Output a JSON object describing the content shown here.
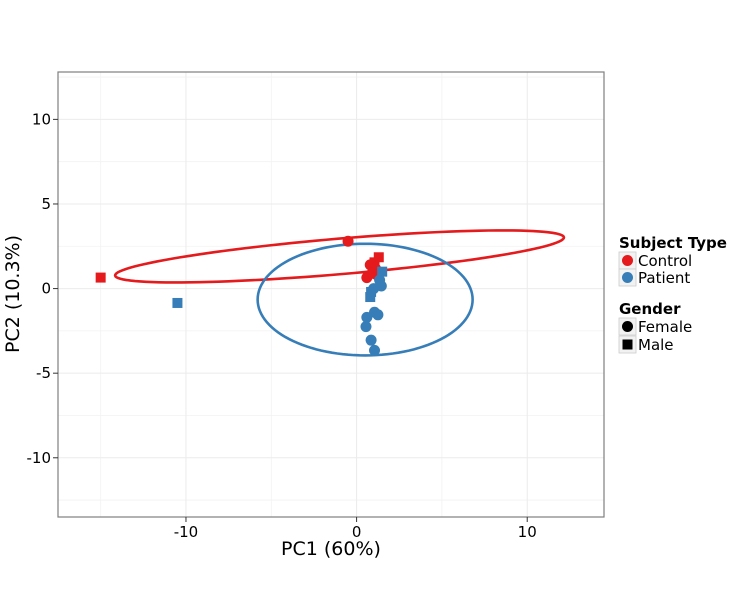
{
  "chart_data": {
    "type": "scatter",
    "xlabel": "PC1 (60%)",
    "ylabel": "PC2 (10.3%)",
    "xlim": [
      -17.5,
      14.5
    ],
    "ylim": [
      -13.5,
      12.8
    ],
    "x_ticks": [
      -10,
      0,
      10
    ],
    "y_ticks": [
      10,
      5,
      0,
      -5,
      -10
    ],
    "x_tick_labels": [
      "-10",
      "0",
      "10"
    ],
    "y_tick_labels": [
      "10",
      "5",
      "0",
      "-5",
      "-10"
    ],
    "grid": true,
    "legend_position": "right",
    "legend": {
      "color_title": "Subject Type",
      "color_entries": [
        {
          "label": "Control",
          "color": "#e41a1c"
        },
        {
          "label": "Patient",
          "color": "#377eb8"
        }
      ],
      "shape_title": "Gender",
      "shape_entries": [
        {
          "label": "Female",
          "shape": "circle"
        },
        {
          "label": "Male",
          "shape": "square"
        }
      ]
    },
    "colors": {
      "Control": "#e41a1c",
      "Patient": "#377eb8"
    },
    "ellipses": [
      {
        "group": "Control",
        "cx": -1.0,
        "cy": 1.9,
        "rx": 13.2,
        "ry": 1.05,
        "angle_deg": 4.9
      },
      {
        "group": "Patient",
        "cx": 0.5,
        "cy": -0.65,
        "rx": 6.3,
        "ry": 3.3,
        "angle_deg": 0
      }
    ],
    "points": [
      {
        "x": -15.0,
        "y": 0.65,
        "group": "Control",
        "shape": "square"
      },
      {
        "x": -0.5,
        "y": 2.8,
        "group": "Control",
        "shape": "circle"
      },
      {
        "x": 0.6,
        "y": 0.65,
        "group": "Control",
        "shape": "circle"
      },
      {
        "x": 0.8,
        "y": 1.4,
        "group": "Control",
        "shape": "circle"
      },
      {
        "x": 1.1,
        "y": 1.2,
        "group": "Control",
        "shape": "circle"
      },
      {
        "x": 0.9,
        "y": 0.9,
        "group": "Control",
        "shape": "circle"
      },
      {
        "x": 1.2,
        "y": 0.8,
        "group": "Control",
        "shape": "circle"
      },
      {
        "x": 1.3,
        "y": 1.85,
        "group": "Control",
        "shape": "square"
      },
      {
        "x": 1.05,
        "y": 1.55,
        "group": "Control",
        "shape": "square"
      },
      {
        "x": -10.5,
        "y": -0.85,
        "group": "Patient",
        "shape": "square"
      },
      {
        "x": 1.5,
        "y": 1.0,
        "group": "Patient",
        "shape": "square"
      },
      {
        "x": 1.35,
        "y": 0.5,
        "group": "Patient",
        "shape": "circle"
      },
      {
        "x": 1.45,
        "y": 0.15,
        "group": "Patient",
        "shape": "circle"
      },
      {
        "x": 1.0,
        "y": 0.0,
        "group": "Patient",
        "shape": "circle"
      },
      {
        "x": 0.85,
        "y": -0.2,
        "group": "Patient",
        "shape": "square"
      },
      {
        "x": 0.8,
        "y": -0.5,
        "group": "Patient",
        "shape": "square"
      },
      {
        "x": 1.05,
        "y": -1.4,
        "group": "Patient",
        "shape": "circle"
      },
      {
        "x": 1.25,
        "y": -1.55,
        "group": "Patient",
        "shape": "circle"
      },
      {
        "x": 0.6,
        "y": -1.7,
        "group": "Patient",
        "shape": "circle"
      },
      {
        "x": 0.55,
        "y": -2.25,
        "group": "Patient",
        "shape": "circle"
      },
      {
        "x": 0.85,
        "y": -3.05,
        "group": "Patient",
        "shape": "circle"
      },
      {
        "x": 1.05,
        "y": -3.65,
        "group": "Patient",
        "shape": "circle"
      }
    ]
  }
}
